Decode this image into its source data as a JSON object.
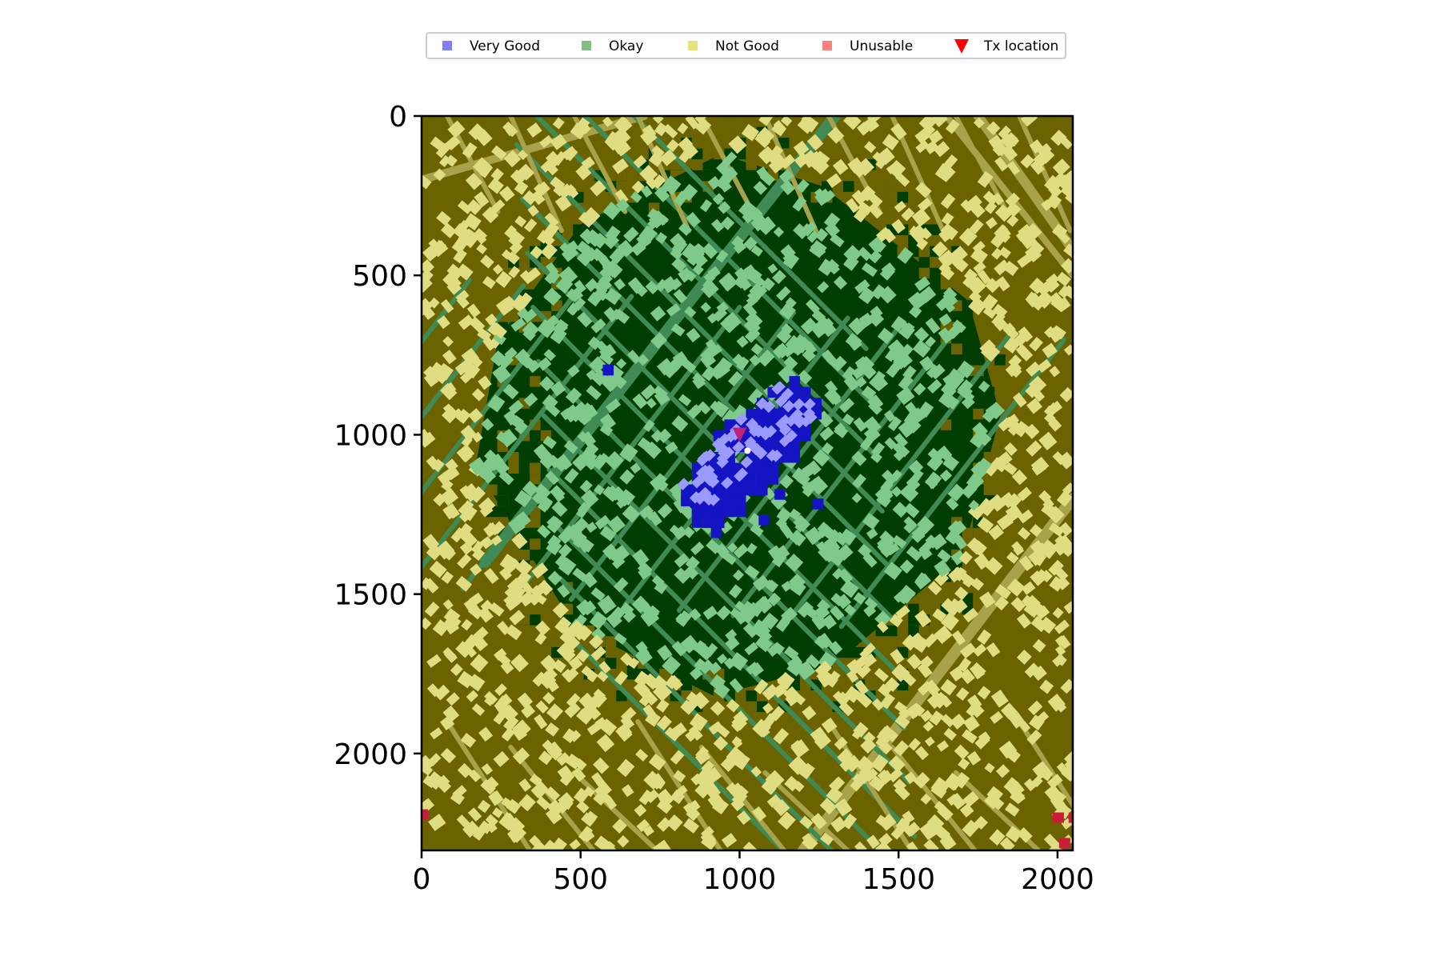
{
  "chart_data": {
    "type": "heatmap",
    "description_visible": "coverage map over building/road layout",
    "x_ticks": [
      "0",
      "500",
      "1000",
      "1500",
      "2000"
    ],
    "y_ticks": [
      "0",
      "500",
      "1000",
      "1500",
      "2000"
    ],
    "xlim": [
      0,
      2048
    ],
    "ylim": [
      2304,
      0
    ],
    "grid": false,
    "legend_position": "top",
    "legend": [
      {
        "label": "Very Good",
        "color": "#7f7fff",
        "marker": "square"
      },
      {
        "label": "Okay",
        "color": "#7fbf7f",
        "marker": "square"
      },
      {
        "label": "Not Good",
        "color": "#e4e47a",
        "marker": "square"
      },
      {
        "label": "Unusable",
        "color": "#ff7f7f",
        "marker": "square"
      },
      {
        "label": "Tx location",
        "color": "#ff0000",
        "marker": "triangle-down"
      }
    ],
    "tx_location": {
      "x": 1000,
      "y": 1000
    },
    "regions": {
      "very_good": {
        "center": [
          1000,
          1050
        ],
        "color": "#1010c8"
      },
      "okay": {
        "center": [
          1000,
          1000
        ],
        "color": "#004400"
      },
      "not_good": {
        "color": "#6e6400"
      },
      "unusable": {
        "color": "#c81e3c",
        "points": [
          [
            2000,
            2200
          ],
          [
            2050,
            2200
          ],
          [
            2020,
            2280
          ],
          [
            0,
            2190
          ]
        ]
      }
    },
    "colors": {
      "not_good_bg": "#6b6200",
      "okay_bg": "#003d00",
      "very_good_bg": "#1414c4",
      "building_yellow": "#e0dc82",
      "building_green": "#7fc98a",
      "road_yellow": "#a8a24a",
      "road_green": "#3f8a55"
    }
  }
}
